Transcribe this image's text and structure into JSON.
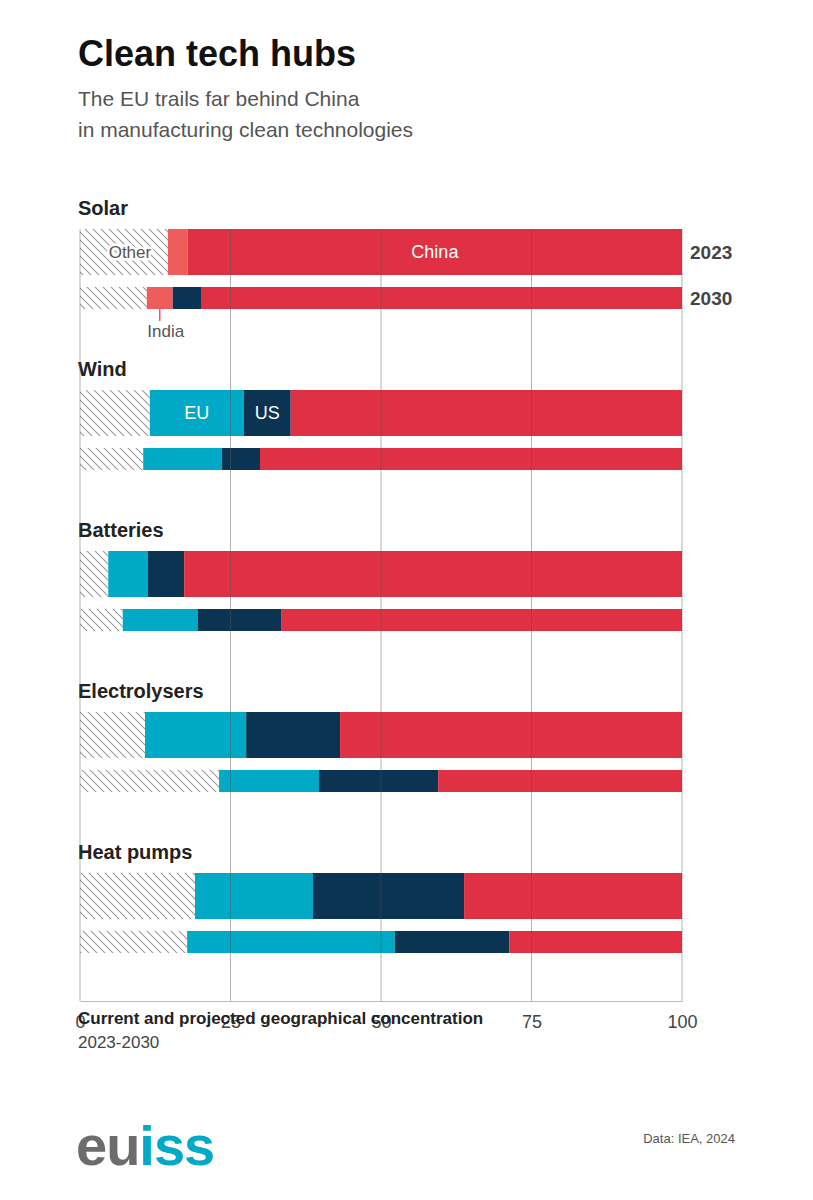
{
  "chart_data": {
    "type": "bar",
    "orientation": "horizontal",
    "stacked": true,
    "grid": true,
    "title": "Clean tech hubs",
    "subtitle": [
      "The EU trails far behind China",
      "in manufacturing clean technologies"
    ],
    "x_label": "Current and projected geographical concentration",
    "x_sublabel": "2023-2030",
    "source": "Data: IEA, 2024",
    "logo": "euiss",
    "groups": [
      "Solar",
      "Wind",
      "Batteries",
      "Electrolysers",
      "Heat pumps"
    ],
    "years": [
      "2023",
      "2030"
    ],
    "xlim": [
      0,
      100
    ],
    "xticks": [
      0,
      25,
      50,
      75,
      100
    ],
    "series": [
      {
        "name": "Other",
        "color": "#9a9a9a",
        "values": [
          14.6,
          11.1,
          11.6,
          10.5,
          4.7,
          7.1,
          10.8,
          23.1,
          19.1,
          17.8
        ]
      },
      {
        "name": "India",
        "color": "#ee5d5b",
        "values": [
          3.3,
          4.3,
          0,
          0,
          0,
          0,
          0,
          0,
          0,
          0
        ]
      },
      {
        "name": "EU",
        "color": "#00a9c6",
        "values": [
          0,
          0,
          15.6,
          13.1,
          6.6,
          12.5,
          16.8,
          16.6,
          19.6,
          34.5
        ]
      },
      {
        "name": "US",
        "color": "#0b3352",
        "values": [
          0,
          4.7,
          7.8,
          6.3,
          6.0,
          13.8,
          15.6,
          19.8,
          25.1,
          19.0
        ]
      },
      {
        "name": "China",
        "color": "#e03144",
        "values": [
          82.1,
          79.9,
          65.0,
          70.1,
          82.7,
          66.6,
          56.8,
          40.5,
          36.2,
          28.7
        ]
      }
    ]
  }
}
